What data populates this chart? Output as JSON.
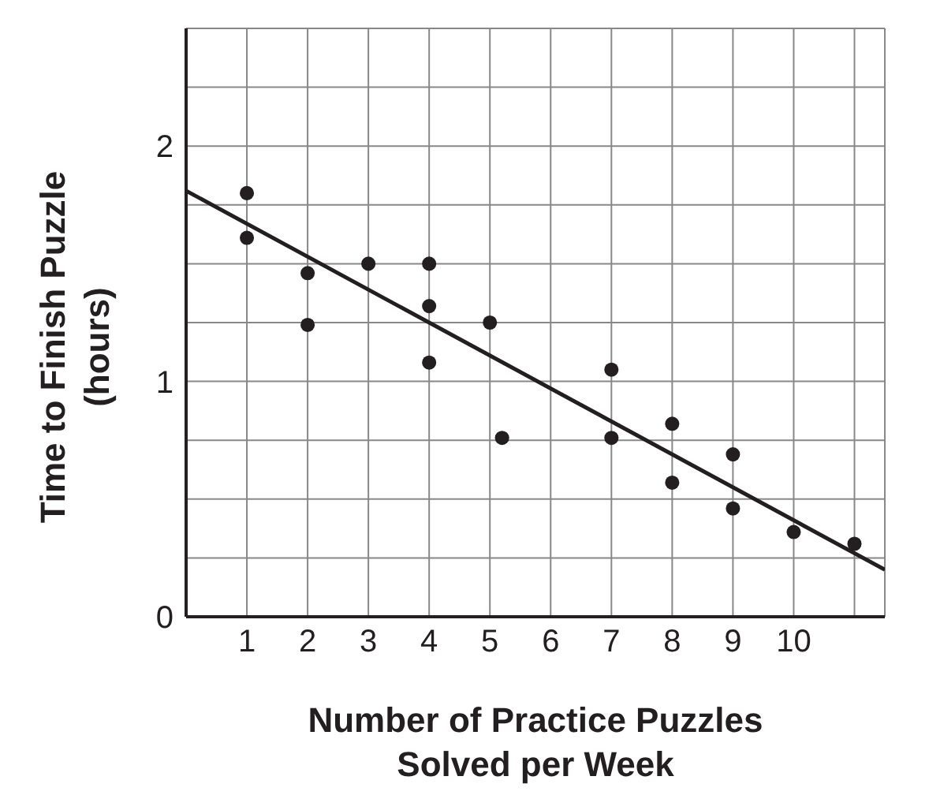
{
  "chart_data": {
    "type": "scatter",
    "xlabel": "Number of Practice Puzzles\nSolved per Week",
    "ylabel": "Time to Finish Puzzle\n(hours)",
    "series": [
      {
        "color": "#231f20",
        "x": [
          1,
          1,
          2,
          2,
          3,
          4,
          4,
          4,
          5,
          5.2,
          7,
          7,
          8,
          8,
          9,
          9,
          10,
          11
        ],
        "values": [
          1.8,
          1.61,
          1.46,
          1.24,
          1.5,
          1.5,
          1.32,
          1.08,
          1.25,
          0.76,
          1.05,
          0.76,
          0.82,
          0.57,
          0.69,
          0.46,
          0.36,
          0.31
        ]
      },
      {
        "type": "line",
        "marker": "none",
        "color": "#231f20",
        "x": [
          0,
          11.5
        ],
        "values": [
          1.81,
          0.2
        ]
      }
    ],
    "marker": "circle",
    "grid": true,
    "xlim": [
      0,
      11.5
    ],
    "xticks": [
      1,
      2,
      3,
      4,
      5,
      6,
      7,
      8,
      9,
      10,
      {
        "value": 11,
        "label": null
      }
    ],
    "ylim": [
      0,
      2.5
    ],
    "yticks": [
      0,
      {
        "value": 0.25,
        "label": null
      },
      {
        "value": 0.5,
        "label": null
      },
      {
        "value": 0.75,
        "label": null
      },
      1,
      {
        "value": 1.25,
        "label": null
      },
      {
        "value": 1.5,
        "label": null
      },
      {
        "value": 1.75,
        "label": null
      },
      2,
      {
        "value": 2.25,
        "label": null
      },
      {
        "value": 2.5,
        "label": null
      }
    ]
  }
}
